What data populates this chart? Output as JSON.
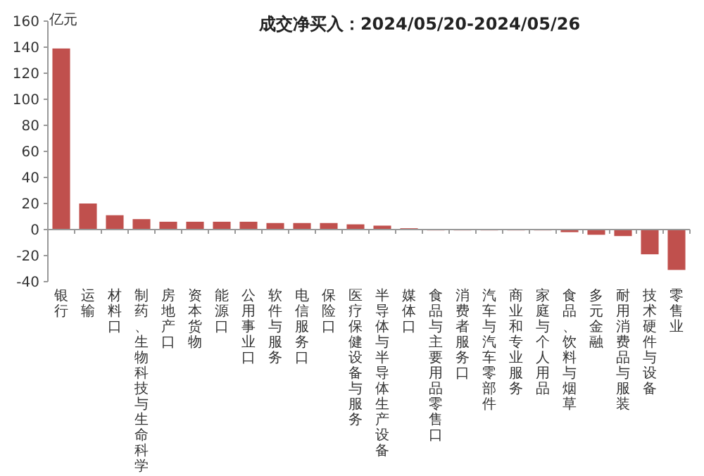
{
  "chart_data": {
    "type": "bar",
    "title": "成交净买入：2024/05/20-2024/05/26",
    "ylabel": "亿元",
    "categories": [
      "银行",
      "运输",
      "材料口",
      "制药、生物科技与生命科学",
      "房地产口",
      "资本货物",
      "能源口",
      "公用事业口",
      "软件与服务",
      "电信服务口",
      "保险口",
      "医疗保健设备与服务",
      "半导体与半导体生产设备",
      "媒体口",
      "食品与主要用品零售口",
      "消费者服务口",
      "汽车与汽车零部件",
      "商业和专业服务",
      "家庭与个人用品",
      "食品、饮料与烟草",
      "多元金融",
      "耐用消费品与服装",
      "技术硬件与设备",
      "零售业"
    ],
    "values": [
      139,
      20,
      11,
      8,
      6,
      6,
      6,
      6,
      5,
      5,
      5,
      4,
      3,
      1,
      0,
      0,
      0,
      0,
      0,
      -2,
      -4,
      -5,
      -19,
      -31
    ],
    "color": "#c0504d",
    "ylim": [
      -40,
      160
    ],
    "yticks": [
      -40,
      -20,
      0,
      20,
      40,
      60,
      80,
      100,
      120,
      140,
      160
    ]
  }
}
